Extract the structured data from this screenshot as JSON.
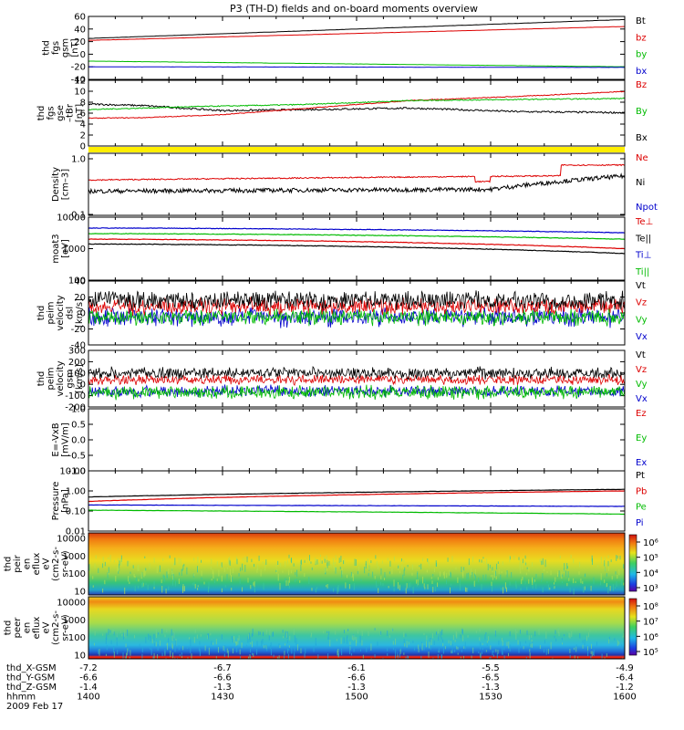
{
  "title": "P3 (TH-D) fields and on-board moments overview",
  "panels": [
    {
      "id": "fgs",
      "ylabel": [
        "thd",
        "fgs",
        "gsm",
        "[nT]"
      ],
      "ylim": [
        -40,
        60
      ],
      "yticks": [
        "-40",
        "-20",
        "0",
        "20",
        "40",
        "60"
      ],
      "legend": [
        {
          "text": "Bt",
          "color": "#000000"
        },
        {
          "text": "bz",
          "color": "#dd0000"
        },
        {
          "text": "by",
          "color": "#00bb00"
        },
        {
          "text": "bx",
          "color": "#0000cc"
        }
      ],
      "series": [
        {
          "name": "Bt",
          "color": "#000000",
          "start": 25,
          "end": 55,
          "noise": 0.3
        },
        {
          "name": "bz",
          "color": "#dd0000",
          "start": 22,
          "end": 44,
          "noise": 0.3
        },
        {
          "name": "by",
          "color": "#00bb00",
          "start": -11,
          "end": -20,
          "noise": 0.3
        },
        {
          "name": "bx",
          "color": "#0000cc",
          "start": -20,
          "end": -21,
          "noise": 0.3
        }
      ]
    },
    {
      "id": "fgs-lo",
      "ylabel": [
        "thd",
        "fgs",
        "gse",
        "–tBr",
        "[nT]"
      ],
      "ylim": [
        -1,
        12
      ],
      "yticks": [
        "0",
        "2",
        "4",
        "6",
        "8",
        "10",
        "12"
      ],
      "legend": [
        {
          "text": "Bz",
          "color": "#dd0000"
        },
        {
          "text": "By",
          "color": "#00bb00"
        },
        {
          "text": "Bx",
          "color": "#000000"
        }
      ],
      "series": [
        {
          "name": "Bx",
          "color": "#000000",
          "points": [
            [
              0,
              7.3
            ],
            [
              0.1,
              7.0
            ],
            [
              0.25,
              6.0
            ],
            [
              0.4,
              6.2
            ],
            [
              0.6,
              6.5
            ],
            [
              0.8,
              5.8
            ],
            [
              1,
              5.6
            ]
          ],
          "noise": 0.35
        },
        {
          "name": "Bz",
          "color": "#dd0000",
          "points": [
            [
              0,
              4.5
            ],
            [
              0.1,
              4.6
            ],
            [
              0.25,
              5.2
            ],
            [
              0.45,
              6.8
            ],
            [
              0.6,
              8.0
            ],
            [
              0.8,
              8.8
            ],
            [
              1,
              9.8
            ]
          ],
          "noise": 0.15
        },
        {
          "name": "By",
          "color": "#00bb00",
          "points": [
            [
              0,
              6.2
            ],
            [
              0.2,
              6.8
            ],
            [
              0.4,
              7.2
            ],
            [
              0.6,
              8.0
            ],
            [
              0.8,
              8.2
            ],
            [
              1,
              8.4
            ]
          ],
          "noise": 0.2
        }
      ]
    },
    {
      "id": "density",
      "ylabel": [
        "Density",
        "[cm–3]"
      ],
      "ylim": [
        0.1,
        1.4
      ],
      "yticks": [
        "0.1",
        "1.0"
      ],
      "legend": [
        {
          "text": "Ne",
          "color": "#dd0000"
        },
        {
          "text": "Ni",
          "color": "#000000"
        },
        {
          "text": "Npot",
          "color": "#0000cc"
        }
      ]
    },
    {
      "id": "temperature",
      "ylabel": [
        "moat3",
        "[eV]"
      ],
      "ylim": [
        100,
        10000
      ],
      "yticks": [
        "100",
        "1000",
        "10000"
      ],
      "legend": [
        {
          "text": "Te⊥",
          "color": "#dd0000"
        },
        {
          "text": "Te||",
          "color": "#000000"
        },
        {
          "text": "Ti⊥",
          "color": "#0000cc"
        },
        {
          "text": "Ti||",
          "color": "#00bb00"
        }
      ]
    },
    {
      "id": "velocity-e",
      "ylabel": [
        "thd",
        "peim",
        "velocity",
        "dsl",
        "[km/s]"
      ],
      "ylim": [
        -40,
        40
      ],
      "yticks": [
        "-40",
        "-20",
        "0",
        "20",
        "40"
      ],
      "legend": [
        {
          "text": "Vt",
          "color": "#000000"
        },
        {
          "text": "Vz",
          "color": "#dd0000"
        },
        {
          "text": "Vy",
          "color": "#00bb00"
        },
        {
          "text": "Vx",
          "color": "#0000cc"
        }
      ]
    },
    {
      "id": "velocity-gsm",
      "ylabel": [
        "thd",
        "peim",
        "velocity",
        "gsm",
        "[km/s]"
      ],
      "ylim": [
        -200,
        300
      ],
      "yticks": [
        "-200",
        "-100",
        "0",
        "100",
        "200",
        "300"
      ],
      "legend": [
        {
          "text": "Vt",
          "color": "#000000"
        },
        {
          "text": "Vz",
          "color": "#dd0000"
        },
        {
          "text": "Vy",
          "color": "#00bb00"
        },
        {
          "text": "Vx",
          "color": "#0000cc"
        }
      ]
    },
    {
      "id": "efield",
      "ylabel": [
        "E=-VxB",
        "[mV/m]"
      ],
      "ylim": [
        -1,
        1
      ],
      "yticks": [
        "-1.0",
        "-0.5",
        "0.0",
        "0.5",
        "1.0"
      ],
      "legend": [
        {
          "text": "Ez",
          "color": "#dd0000"
        },
        {
          "text": "Ey",
          "color": "#00bb00"
        },
        {
          "text": "Ex",
          "color": "#0000cc"
        }
      ]
    },
    {
      "id": "pressure",
      "ylabel": [
        "Pressure",
        "[nPa]"
      ],
      "ylim": [
        0.01,
        10
      ],
      "yticks": [
        "0.01",
        "0.10",
        "1.00",
        "10.00"
      ],
      "legend": [
        {
          "text": "Pt",
          "color": "#000000"
        },
        {
          "text": "Pb",
          "color": "#dd0000"
        },
        {
          "text": "Pe",
          "color": "#00bb00"
        },
        {
          "text": "Pi",
          "color": "#0000cc"
        }
      ]
    },
    {
      "id": "spec-ion",
      "ylabel": [
        "thd",
        "peir",
        "en",
        "eflux",
        "eV",
        "(cm2-s-",
        "sr-eV)"
      ],
      "yticks": [
        "10",
        "100",
        "1000",
        "10000"
      ],
      "cbar": [
        "10³",
        "10⁴",
        "10⁵",
        "10⁶"
      ]
    },
    {
      "id": "spec-elec",
      "ylabel": [
        "thd",
        "peer",
        "en",
        "eflux",
        "eV",
        "(cm2-s-",
        "sr-eV)"
      ],
      "yticks": [
        "10",
        "100",
        "1000",
        "10000"
      ],
      "cbar": [
        "10⁵",
        "10⁶",
        "10⁷",
        "10⁸"
      ]
    }
  ],
  "xaxis": {
    "rows": [
      {
        "label": "thd_X-GSM",
        "values": [
          "-7.2",
          "-6.7",
          "-6.1",
          "-5.5",
          "-4.9"
        ]
      },
      {
        "label": "thd_Y-GSM",
        "values": [
          "-6.6",
          "-6.6",
          "-6.6",
          "-6.5",
          "-6.4"
        ]
      },
      {
        "label": "thd_Z-GSM",
        "values": [
          "-1.4",
          "-1.3",
          "-1.3",
          "-1.3",
          "-1.2"
        ]
      },
      {
        "label": "hhmm",
        "values": [
          "1400",
          "1430",
          "1500",
          "1530",
          "1600"
        ]
      }
    ],
    "date": "2009 Feb 17"
  },
  "colors": {
    "bar": "#ffee00"
  },
  "chart_data": {
    "type": "line",
    "title": "P3 (TH-D) fields and on-board moments overview",
    "x": [
      "1400",
      "1430",
      "1500",
      "1530",
      "1600"
    ],
    "xlabel": "hhmm",
    "date": "2009 Feb 17",
    "panels": [
      {
        "ylabel": "thd fgs gsm [nT]",
        "ylim": [
          -40,
          60
        ],
        "series": [
          {
            "name": "Bt",
            "values": [
              25,
              32,
              40,
              48,
              55
            ]
          },
          {
            "name": "bz",
            "values": [
              22,
              27,
              33,
              38,
              44
            ]
          },
          {
            "name": "by",
            "values": [
              -11,
              -14,
              -17,
              -19,
              -20
            ]
          },
          {
            "name": "bx",
            "values": [
              -20,
              -20,
              -21,
              -21,
              -21
            ]
          }
        ]
      },
      {
        "ylabel": "Density [cm-3]",
        "ylim": [
          0.1,
          1.4
        ],
        "series": [
          {
            "name": "Ne",
            "values": [
              0.45,
              0.52,
              0.56,
              0.55,
              0.8
            ]
          },
          {
            "name": "Ni",
            "values": [
              0.28,
              0.29,
              0.3,
              0.32,
              0.5
            ]
          }
        ]
      },
      {
        "ylabel": "moat3 [eV]",
        "ylim": [
          100,
          10000
        ],
        "series": [
          {
            "name": "Ti⊥",
            "values": [
              4500,
              4300,
              4200,
              4000,
              3200
            ]
          },
          {
            "name": "Ti||",
            "values": [
              3000,
              2800,
              2700,
              2500,
              2000
            ]
          },
          {
            "name": "Te⊥",
            "values": [
              2000,
              1800,
              1600,
              1400,
              1000
            ]
          },
          {
            "name": "Te||",
            "values": [
              1400,
              1300,
              1100,
              900,
              700
            ]
          }
        ]
      },
      {
        "ylabel": "Pressure [nPa]",
        "ylim": [
          0.01,
          10
        ],
        "series": [
          {
            "name": "Pt",
            "values": [
              0.5,
              0.6,
              0.75,
              0.95,
              1.2
            ]
          },
          {
            "name": "Pb",
            "values": [
              0.3,
              0.4,
              0.55,
              0.75,
              1.0
            ]
          },
          {
            "name": "Pi",
            "values": [
              0.2,
              0.19,
              0.18,
              0.18,
              0.17
            ]
          },
          {
            "name": "Pe",
            "values": [
              0.11,
              0.1,
              0.09,
              0.08,
              0.07
            ]
          }
        ]
      }
    ]
  }
}
